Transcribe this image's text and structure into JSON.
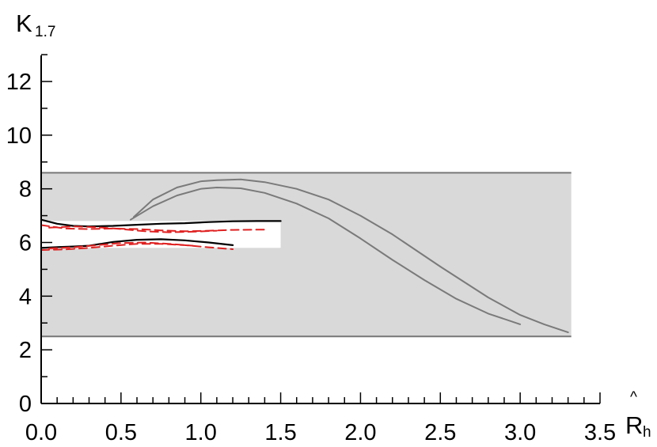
{
  "chart_data": {
    "type": "line",
    "title": "",
    "xlabel": "R̂h",
    "xlabel_main": "R",
    "xlabel_hat": "^",
    "xlabel_sub": "h",
    "ylabel": "K1.7",
    "ylabel_main": "K",
    "ylabel_sub": "1.7",
    "xlim": [
      0.0,
      3.5
    ],
    "ylim": [
      0,
      13
    ],
    "xticks": [
      0.0,
      0.5,
      1.0,
      1.5,
      2.0,
      2.5,
      3.0,
      3.5
    ],
    "xtick_labels": [
      "0.0",
      "0.5",
      "1.0",
      "1.5",
      "2.0",
      "2.5",
      "3.0",
      "3.5"
    ],
    "yticks": [
      0,
      2,
      4,
      6,
      8,
      10,
      12
    ],
    "ytick_labels": [
      "0",
      "2",
      "4",
      "6",
      "8",
      "10",
      "12"
    ],
    "grid": false,
    "bands": [
      {
        "kind": "shaded",
        "color": "#d9d9d9",
        "border": "#777777",
        "x": [
          0.0,
          3.32
        ],
        "y": [
          2.5,
          8.6
        ]
      },
      {
        "kind": "white",
        "color": "#ffffff",
        "x": [
          0.0,
          1.5
        ],
        "y": [
          5.8,
          6.8
        ]
      }
    ],
    "series": [
      {
        "style": "gray",
        "color": "#7a7a7a",
        "dash": false,
        "x": [
          0.58,
          0.7,
          0.85,
          1.0,
          1.1,
          1.25,
          1.4,
          1.6,
          1.8,
          2.0,
          2.2,
          2.5,
          2.8,
          3.0,
          3.15,
          3.3
        ],
        "y": [
          6.95,
          7.6,
          8.05,
          8.28,
          8.32,
          8.35,
          8.25,
          8.0,
          7.6,
          7.0,
          6.3,
          5.1,
          3.95,
          3.3,
          2.95,
          2.65
        ]
      },
      {
        "style": "gray",
        "color": "#7a7a7a",
        "dash": false,
        "x": [
          0.56,
          0.7,
          0.85,
          1.0,
          1.1,
          1.25,
          1.4,
          1.6,
          1.8,
          2.0,
          2.2,
          2.4,
          2.6,
          2.8,
          3.0
        ],
        "y": [
          6.85,
          7.35,
          7.75,
          8.0,
          8.05,
          8.02,
          7.85,
          7.45,
          6.9,
          6.15,
          5.35,
          4.6,
          3.9,
          3.35,
          2.95
        ]
      },
      {
        "style": "black",
        "color": "#000000",
        "dash": false,
        "x": [
          0.0,
          0.1,
          0.2,
          0.3,
          0.45,
          0.6,
          0.75,
          0.9,
          1.05,
          1.2,
          1.35,
          1.5
        ],
        "y": [
          6.85,
          6.7,
          6.62,
          6.6,
          6.62,
          6.66,
          6.7,
          6.72,
          6.76,
          6.79,
          6.8,
          6.8
        ]
      },
      {
        "style": "black",
        "color": "#000000",
        "dash": false,
        "x": [
          0.0,
          0.1,
          0.2,
          0.3,
          0.45,
          0.6,
          0.75,
          0.9,
          1.05,
          1.2
        ],
        "y": [
          5.8,
          5.83,
          5.85,
          5.88,
          6.02,
          6.1,
          6.12,
          6.08,
          6.0,
          5.9
        ]
      },
      {
        "style": "red",
        "color": "#e02020",
        "dash": true,
        "x": [
          0.0,
          0.15,
          0.3,
          0.45,
          0.6,
          0.75,
          0.9,
          1.05,
          1.2,
          1.4
        ],
        "y": [
          6.65,
          6.52,
          6.5,
          6.52,
          6.5,
          6.45,
          6.42,
          6.44,
          6.47,
          6.48
        ]
      },
      {
        "style": "red",
        "color": "#e02020",
        "dash": true,
        "x": [
          0.05,
          0.2,
          0.35,
          0.5,
          0.65,
          0.8,
          0.95,
          1.1
        ],
        "y": [
          6.55,
          6.6,
          6.57,
          6.5,
          6.42,
          6.38,
          6.4,
          6.44
        ]
      },
      {
        "style": "red",
        "color": "#e02020",
        "dash": true,
        "x": [
          0.0,
          0.15,
          0.3,
          0.45,
          0.6,
          0.75,
          0.9,
          1.05,
          1.2
        ],
        "y": [
          5.72,
          5.74,
          5.8,
          5.88,
          5.95,
          5.95,
          5.9,
          5.82,
          5.75
        ]
      },
      {
        "style": "red",
        "color": "#e02020",
        "dash": true,
        "x": [
          0.05,
          0.2,
          0.35,
          0.5,
          0.65,
          0.8,
          0.95
        ],
        "y": [
          5.78,
          5.82,
          5.9,
          5.98,
          6.0,
          5.95,
          5.88
        ]
      }
    ]
  }
}
